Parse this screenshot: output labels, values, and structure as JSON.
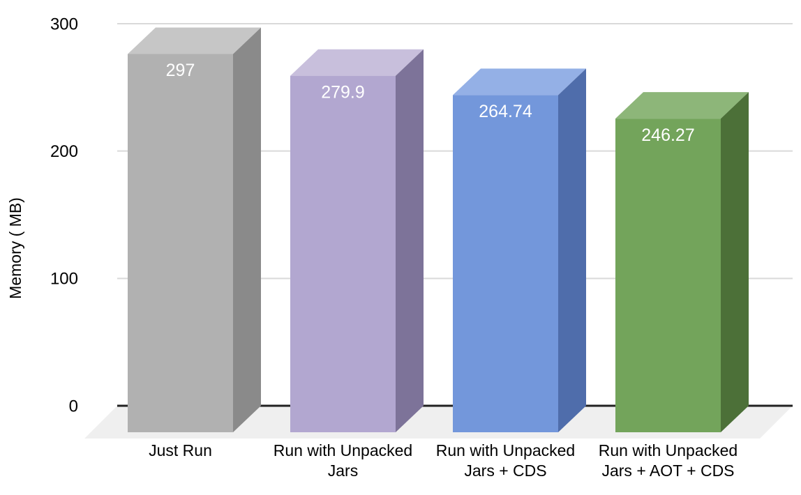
{
  "chart_data": {
    "type": "bar",
    "style": "3d-column",
    "title": "",
    "xlabel": "",
    "ylabel": "Memory ( MB)",
    "ylim": [
      0,
      300
    ],
    "yticks": [
      "0",
      "100",
      "200",
      "300"
    ],
    "grid": true,
    "legend_position": "none",
    "categories": [
      "Just Run",
      "Run with Unpacked Jars",
      "Run with Unpacked Jars + CDS",
      "Run with Unpacked Jars + AOT + CDS"
    ],
    "category_label_lines": [
      [
        "Just Run"
      ],
      [
        "Run with Unpacked",
        "Jars"
      ],
      [
        "Run with Unpacked",
        "Jars + CDS"
      ],
      [
        "Run with Unpacked",
        "Jars + AOT + CDS"
      ]
    ],
    "values": [
      297,
      279.9,
      264.74,
      246.27
    ],
    "value_labels": [
      "297",
      "279.9",
      "264.74",
      "246.27"
    ],
    "series_colors": [
      {
        "front": "#b1b1b1",
        "top": "#c6c6c6",
        "side": "#8a8a8a"
      },
      {
        "front": "#b2a7d0",
        "top": "#c8bfdc",
        "side": "#7d7399"
      },
      {
        "front": "#7397db",
        "top": "#94b0e6",
        "side": "#4f6dab"
      },
      {
        "front": "#73a45b",
        "top": "#8db679",
        "side": "#4c7038"
      }
    ],
    "value_label_color": "#ffffff",
    "tick_label_color": "#000000",
    "category_label_color": "#000000",
    "gridline_color": "#d9d9d9",
    "baseline_color": "#212121",
    "floor_color": "#efefef",
    "background_color": "#ffffff"
  }
}
